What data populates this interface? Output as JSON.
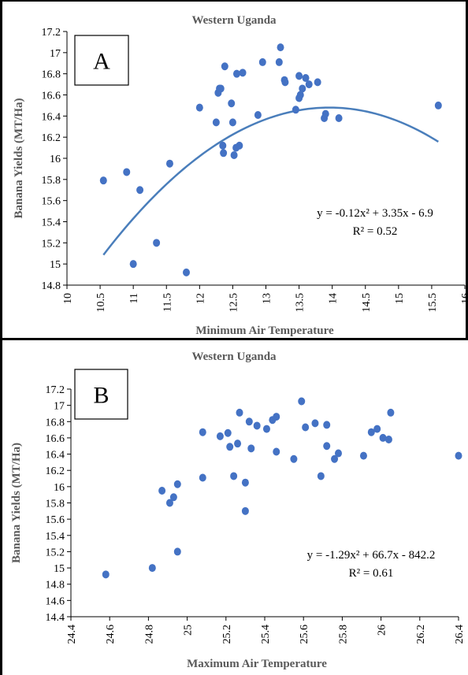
{
  "chart_data": [
    {
      "type": "scatter",
      "panel_label": "A",
      "title": "Western Uganda",
      "xlabel": "Minimum Air Temperature",
      "ylabel": "Banana Yields (MT/Ha)",
      "xlim": [
        10,
        16
      ],
      "ylim": [
        14.8,
        17.2
      ],
      "x_ticks": [
        "10",
        "10.5",
        "11",
        "11.5",
        "12",
        "12.5",
        "13",
        "13.5",
        "14",
        "14.5",
        "15",
        "15.5",
        "16"
      ],
      "y_ticks": [
        "14.8",
        "15",
        "15.2",
        "15.4",
        "15.6",
        "15.8",
        "16",
        "16.2",
        "16.4",
        "16.6",
        "16.8",
        "17",
        "17.2"
      ],
      "grid": false,
      "equation": "y = -0.12x² + 3.35x - 6.9",
      "r_squared": "R² = 0.52",
      "trend": {
        "type": "polynomial",
        "a": -0.12,
        "b": 3.35,
        "c": -6.9,
        "x_range": [
          10.55,
          15.6
        ]
      },
      "point_color": "#4472c4",
      "trend_color": "#4a7ebb",
      "points": [
        [
          10.55,
          15.79
        ],
        [
          10.9,
          15.87
        ],
        [
          11.0,
          15.0
        ],
        [
          11.1,
          15.7
        ],
        [
          11.35,
          15.2
        ],
        [
          11.55,
          15.95
        ],
        [
          11.8,
          14.92
        ],
        [
          12.0,
          16.48
        ],
        [
          12.25,
          16.34
        ],
        [
          12.28,
          16.62
        ],
        [
          12.3,
          16.66
        ],
        [
          12.32,
          16.66
        ],
        [
          12.35,
          16.12
        ],
        [
          12.36,
          16.05
        ],
        [
          12.38,
          16.87
        ],
        [
          12.48,
          16.52
        ],
        [
          12.5,
          16.34
        ],
        [
          12.52,
          16.03
        ],
        [
          12.55,
          16.1
        ],
        [
          12.56,
          16.8
        ],
        [
          12.6,
          16.12
        ],
        [
          12.65,
          16.81
        ],
        [
          12.88,
          16.41
        ],
        [
          12.95,
          16.91
        ],
        [
          13.2,
          16.91
        ],
        [
          13.22,
          17.05
        ],
        [
          13.28,
          16.74
        ],
        [
          13.29,
          16.72
        ],
        [
          13.45,
          16.46
        ],
        [
          13.5,
          16.78
        ],
        [
          13.5,
          16.57
        ],
        [
          13.52,
          16.6
        ],
        [
          13.55,
          16.66
        ],
        [
          13.6,
          16.76
        ],
        [
          13.65,
          16.7
        ],
        [
          13.78,
          16.72
        ],
        [
          13.88,
          16.38
        ],
        [
          13.9,
          16.42
        ],
        [
          14.1,
          16.38
        ],
        [
          15.6,
          16.5
        ]
      ]
    },
    {
      "type": "scatter",
      "panel_label": "B",
      "title": "Western Uganda",
      "xlabel": "Maximum Air Temperature",
      "ylabel": "Banana Yields (MT/Ha)",
      "xlim": [
        24.4,
        26.4
      ],
      "ylim": [
        14.4,
        17.2
      ],
      "x_ticks": [
        "24.4",
        "24.6",
        "24.8",
        "25",
        "25.2",
        "25.4",
        "25.6",
        "25.8",
        "26",
        "26.2",
        "26.4"
      ],
      "y_ticks": [
        "14.4",
        "14.6",
        "14.8",
        "15",
        "15.2",
        "15.4",
        "15.6",
        "15.8",
        "16",
        "16.2",
        "16.4",
        "16.6",
        "16.8",
        "17",
        "17.2"
      ],
      "grid": false,
      "equation": "y = -1.29x² + 66.7x - 842.2",
      "r_squared": "R² = 0.61",
      "trend": {
        "type": "polynomial",
        "a": -1.29,
        "b": 66.7,
        "c": -842.2,
        "x_range": [
          24.58,
          26.4
        ]
      },
      "point_color": "#4472c4",
      "trend_color": "#000000",
      "points": [
        [
          24.58,
          14.92
        ],
        [
          24.82,
          15.0
        ],
        [
          24.87,
          15.95
        ],
        [
          24.91,
          15.8
        ],
        [
          24.93,
          15.87
        ],
        [
          24.95,
          16.03
        ],
        [
          24.95,
          15.2
        ],
        [
          25.08,
          16.11
        ],
        [
          25.08,
          16.67
        ],
        [
          25.17,
          16.62
        ],
        [
          25.21,
          16.66
        ],
        [
          25.22,
          16.49
        ],
        [
          25.24,
          16.13
        ],
        [
          25.26,
          16.53
        ],
        [
          25.27,
          16.91
        ],
        [
          25.3,
          16.05
        ],
        [
          25.3,
          15.7
        ],
        [
          25.32,
          16.8
        ],
        [
          25.33,
          16.47
        ],
        [
          25.36,
          16.75
        ],
        [
          25.41,
          16.71
        ],
        [
          25.44,
          16.82
        ],
        [
          25.46,
          16.86
        ],
        [
          25.46,
          16.43
        ],
        [
          25.55,
          16.34
        ],
        [
          25.59,
          17.05
        ],
        [
          25.61,
          16.73
        ],
        [
          25.66,
          16.78
        ],
        [
          25.69,
          16.13
        ],
        [
          25.72,
          16.76
        ],
        [
          25.72,
          16.5
        ],
        [
          25.76,
          16.34
        ],
        [
          25.78,
          16.41
        ],
        [
          25.91,
          16.38
        ],
        [
          25.95,
          16.67
        ],
        [
          25.98,
          16.71
        ],
        [
          26.01,
          16.6
        ],
        [
          26.04,
          16.58
        ],
        [
          26.05,
          16.91
        ],
        [
          26.4,
          16.38
        ]
      ]
    }
  ]
}
